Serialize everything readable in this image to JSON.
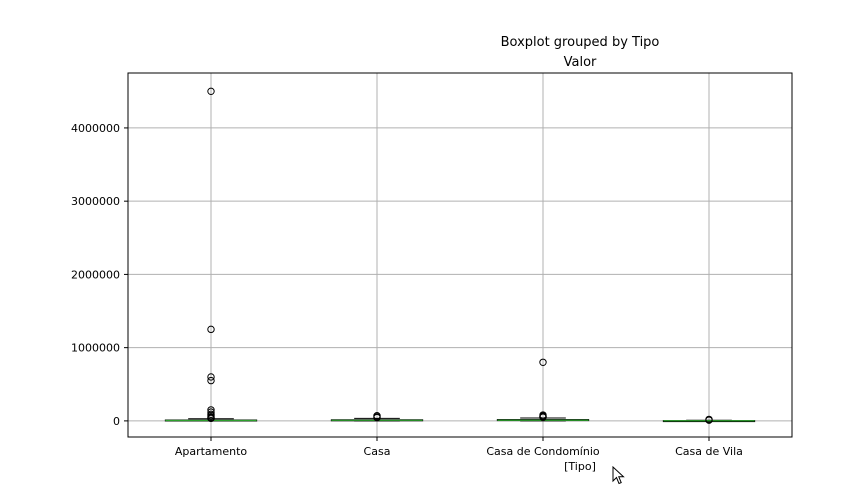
{
  "chart_data": {
    "type": "boxplot",
    "suptitle": "Boxplot grouped by Tipo",
    "title": "Valor",
    "xlabel": "[Tipo]",
    "ylabel": "",
    "ylim": [
      -220000,
      4750000
    ],
    "yticks": [
      0,
      1000000,
      2000000,
      3000000,
      4000000
    ],
    "ytick_labels": [
      "0",
      "1000000",
      "2000000",
      "3000000",
      "4000000"
    ],
    "grid": true,
    "colors": {
      "median": "#2ca02c",
      "box": "#000000",
      "grid": "#b0b0b0"
    },
    "categories": [
      "Apartamento",
      "Casa",
      "Casa de Condomínio",
      "Casa de Vila"
    ],
    "boxes": [
      {
        "category": "Apartamento",
        "whisker_low": 0,
        "q1": 2000,
        "median": 5000,
        "q3": 12000,
        "whisker_high": 30000,
        "fliers": [
          4500000,
          1250000,
          600000,
          550000,
          150000,
          120000,
          90000,
          70000,
          50000,
          40000,
          35000
        ]
      },
      {
        "category": "Casa",
        "whisker_low": 0,
        "q1": 3000,
        "median": 8000,
        "q3": 15000,
        "whisker_high": 35000,
        "fliers": [
          70000,
          55000,
          45000
        ]
      },
      {
        "category": "Casa de Condomínio",
        "whisker_low": 0,
        "q1": 4000,
        "median": 9000,
        "q3": 18000,
        "whisker_high": 40000,
        "fliers": [
          800000,
          80000,
          65000,
          55000,
          50000
        ]
      },
      {
        "category": "Casa de Vila",
        "whisker_low": 0,
        "q1": 1000,
        "median": 2000,
        "q3": 4000,
        "whisker_high": 8000,
        "fliers": [
          20000,
          10000
        ]
      }
    ]
  }
}
